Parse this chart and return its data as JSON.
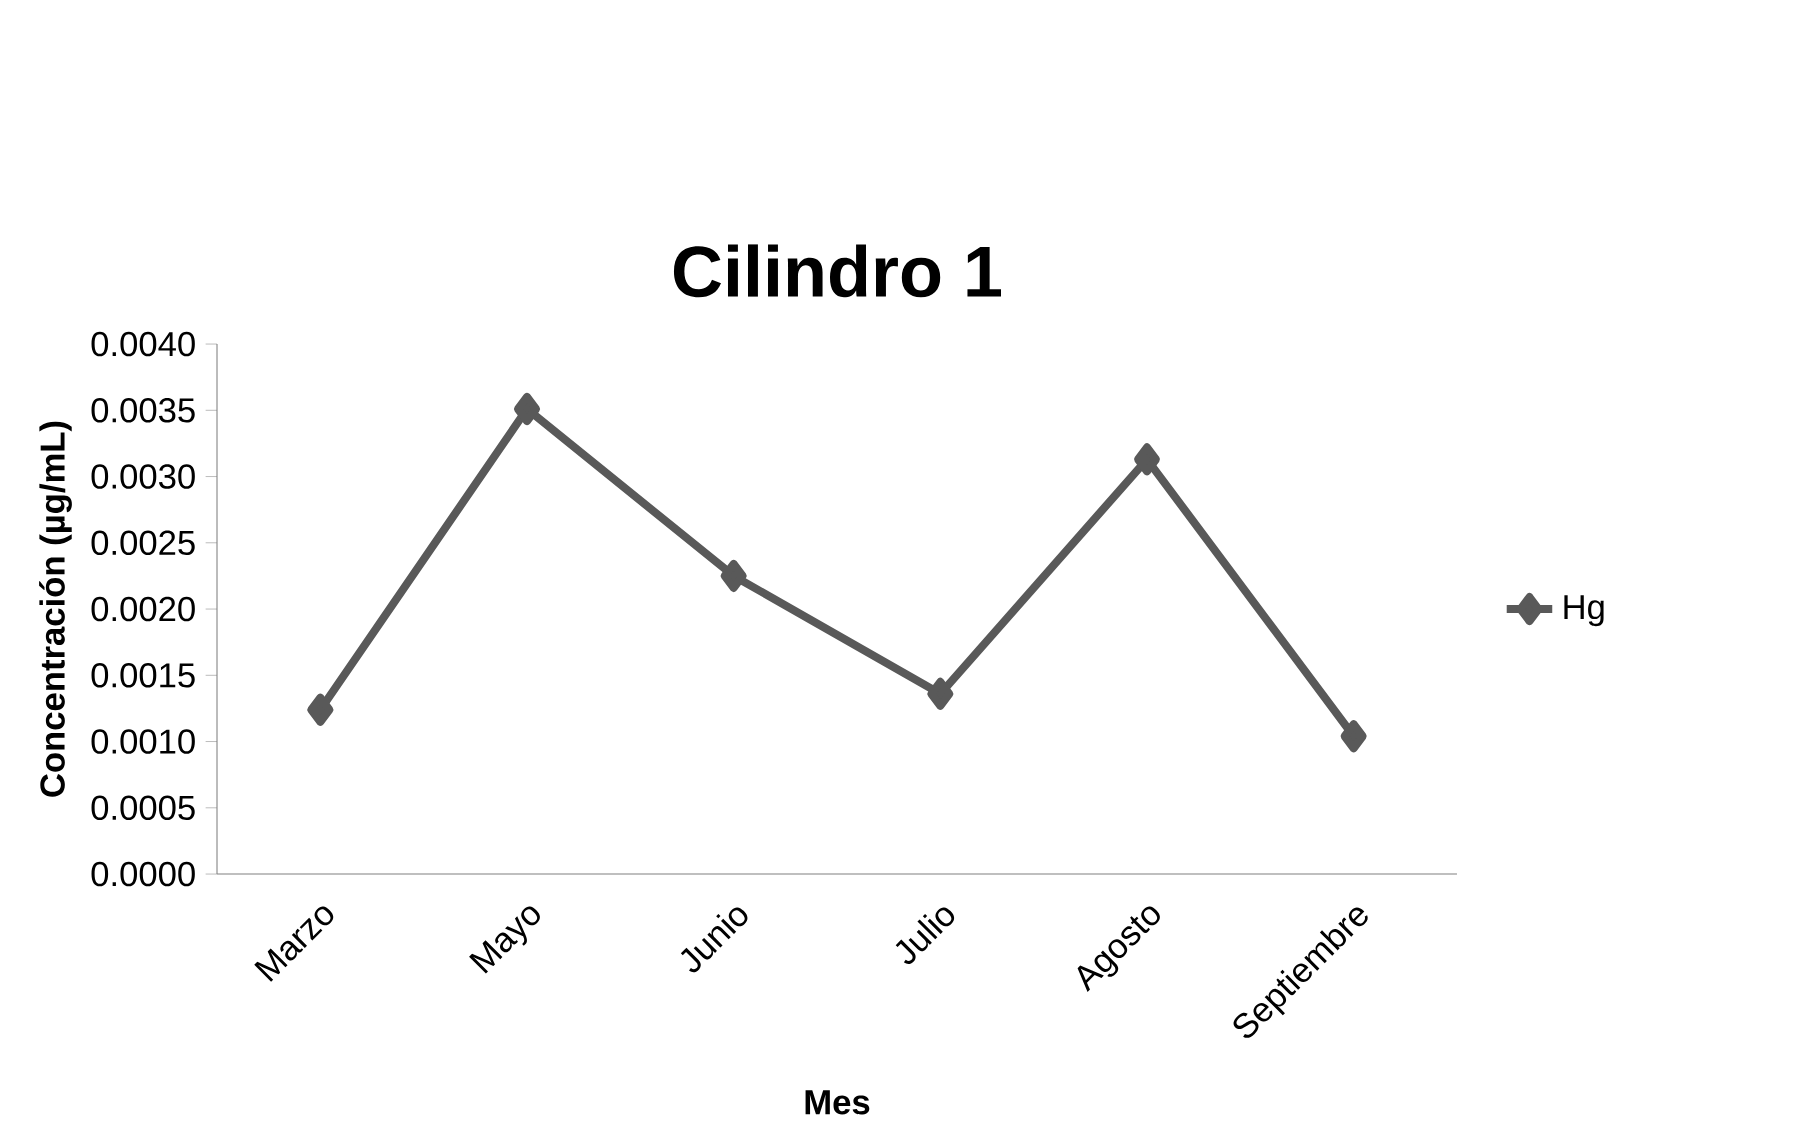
{
  "chart_data": {
    "type": "line",
    "title": "Cilindro 1",
    "xlabel": "Mes",
    "ylabel": "Concentración (µg/mL)",
    "categories": [
      "Marzo",
      "Mayo",
      "Junio",
      "Julio",
      "Agosto",
      "Septiembre"
    ],
    "series": [
      {
        "name": "Hg",
        "color": "#595959",
        "values": [
          0.00124,
          0.00351,
          0.00225,
          0.00136,
          0.00313,
          0.00104
        ]
      }
    ],
    "ylim": [
      0,
      0.004
    ],
    "yticks": [
      {
        "value": 0,
        "label": "0.0000"
      },
      {
        "value": 0.0005,
        "label": "0.0005"
      },
      {
        "value": 0.001,
        "label": "0.0010"
      },
      {
        "value": 0.0015,
        "label": "0.0015"
      },
      {
        "value": 0.002,
        "label": "0.0020"
      },
      {
        "value": 0.0025,
        "label": "0.0025"
      },
      {
        "value": 0.003,
        "label": "0.0030"
      },
      {
        "value": 0.0035,
        "label": "0.0035"
      },
      {
        "value": 0.004,
        "label": "0.0040"
      }
    ],
    "grid": false,
    "legend": "right",
    "marker": "diamond",
    "line_style": "solid"
  }
}
